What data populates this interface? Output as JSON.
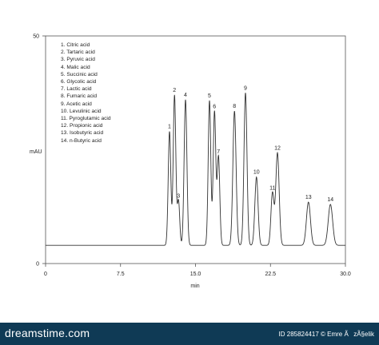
{
  "chart_data": {
    "type": "line",
    "title": "",
    "xlabel": "min",
    "ylabel": "mAU",
    "xlim": [
      0,
      30
    ],
    "ylim": [
      0,
      50
    ],
    "xticks": [
      0,
      7.5,
      15.0,
      22.5,
      30.0
    ],
    "xtick_labels": [
      "0",
      "7.5",
      "15.0",
      "22.5",
      "30.0"
    ],
    "yticks": [
      0,
      50
    ],
    "ytick_labels": [
      "0",
      "50"
    ],
    "baseline": 4,
    "grid": false,
    "legend_position": "top-left",
    "legend": [
      "1. Citric acid",
      "2. Tartaric acid",
      "3. Pyruvic acid",
      "4. Malic acid",
      "5. Succinic acid",
      "6. Glycolic acid",
      "7. Lactic acid",
      "8. Fumaric acid",
      "9. Acetic acid",
      "10. Levulinic acid",
      "11. Pyroglutamic acid",
      "12. Propionic acid",
      "13. Isobutyric acid",
      "14. n-Butyric acid"
    ],
    "peaks": [
      {
        "label": "1",
        "rt": 12.4,
        "height": 29.0,
        "width": 0.13
      },
      {
        "label": "2",
        "rt": 12.9,
        "height": 37.0,
        "width": 0.13
      },
      {
        "label": "3",
        "rt": 13.3,
        "height": 13.8,
        "width": 0.12
      },
      {
        "label": "4",
        "rt": 14.0,
        "height": 36.0,
        "width": 0.14
      },
      {
        "label": "5",
        "rt": 16.4,
        "height": 35.8,
        "width": 0.13
      },
      {
        "label": "6",
        "rt": 16.9,
        "height": 33.4,
        "width": 0.13
      },
      {
        "label": "7",
        "rt": 17.3,
        "height": 23.5,
        "width": 0.13
      },
      {
        "label": "8",
        "rt": 18.9,
        "height": 33.5,
        "width": 0.16
      },
      {
        "label": "9",
        "rt": 20.0,
        "height": 37.5,
        "width": 0.15
      },
      {
        "label": "10",
        "rt": 21.1,
        "height": 19.0,
        "width": 0.16
      },
      {
        "label": "11",
        "rt": 22.7,
        "height": 15.5,
        "width": 0.15
      },
      {
        "label": "12",
        "rt": 23.2,
        "height": 24.3,
        "width": 0.17
      },
      {
        "label": "13",
        "rt": 26.3,
        "height": 13.5,
        "width": 0.2
      },
      {
        "label": "14",
        "rt": 28.5,
        "height": 13.0,
        "width": 0.22
      }
    ]
  },
  "footer": {
    "brand": "dreamstime.com",
    "ids": "ID 285824417 © Emre ÃzÃ§elik"
  },
  "colors": {
    "trace": "#333333",
    "axis": "#444444",
    "footer_bg": "#0f3a55"
  }
}
